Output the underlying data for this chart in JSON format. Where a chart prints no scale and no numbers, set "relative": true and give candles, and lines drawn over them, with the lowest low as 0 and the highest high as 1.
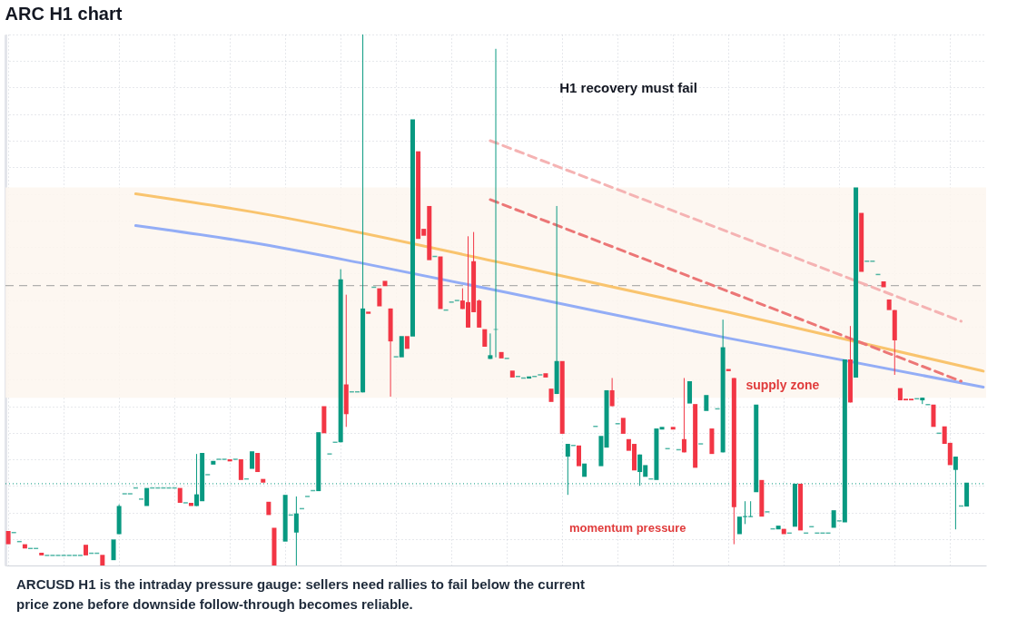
{
  "chart_data": {
    "type": "candlestick",
    "title": "ARC H1 chart",
    "relative": true,
    "grid": true,
    "tick_labels": false,
    "categories": [
      null,
      null,
      null,
      null,
      null,
      null,
      null,
      null,
      null,
      null,
      null,
      null,
      null,
      null,
      null,
      null,
      null,
      null,
      null,
      null,
      null,
      null,
      null,
      null,
      null,
      null,
      null,
      null,
      null,
      null,
      null,
      null,
      null,
      null,
      null,
      null,
      null,
      null,
      null,
      null,
      null,
      null,
      null,
      null,
      null,
      null,
      null,
      null,
      null,
      null,
      null,
      null,
      null,
      null,
      null,
      null,
      null,
      null,
      null,
      null,
      null,
      null,
      null,
      null,
      null,
      null,
      null,
      null,
      null,
      null,
      null,
      null,
      null,
      null,
      null,
      null,
      null,
      null,
      null,
      null,
      null,
      null,
      null,
      null,
      null,
      null,
      null,
      null,
      null,
      null,
      null,
      null,
      null,
      null,
      null,
      null,
      null,
      null,
      null,
      null,
      null,
      null,
      null,
      null,
      null,
      null,
      null,
      null,
      null,
      null,
      null,
      null,
      null,
      null,
      null,
      null,
      null,
      null,
      null,
      null,
      null,
      null,
      null,
      null,
      null,
      null,
      null,
      null,
      null,
      null,
      null,
      null,
      null,
      null,
      null,
      null,
      null,
      null,
      null,
      null,
      null,
      null,
      null,
      null,
      null,
      null,
      null,
      null,
      null,
      null,
      null,
      null,
      null,
      null,
      null,
      null,
      null,
      null,
      null,
      null,
      null,
      null,
      null,
      null,
      null,
      null,
      null,
      null,
      null,
      null,
      null,
      null,
      null,
      null,
      null,
      null,
      null
    ],
    "ohlc": [
      [
        0.065,
        0.065,
        0.04,
        0.04
      ],
      [
        0.062,
        0.062,
        0.062,
        0.062
      ],
      [
        0.045,
        0.045,
        0.045,
        0.045
      ],
      [
        0.04,
        0.04,
        0.032,
        0.032
      ],
      [
        0.032,
        0.032,
        0.032,
        0.032
      ],
      [
        0.032,
        0.032,
        0.032,
        0.032
      ],
      [
        0.024,
        0.024,
        0.019,
        0.019
      ],
      [
        0.019,
        0.019,
        0.019,
        0.019
      ],
      [
        0.019,
        0.019,
        0.019,
        0.019
      ],
      [
        0.019,
        0.019,
        0.019,
        0.019
      ],
      [
        0.019,
        0.019,
        0.019,
        0.019
      ],
      [
        0.019,
        0.019,
        0.019,
        0.019
      ],
      [
        0.019,
        0.019,
        0.019,
        0.019
      ],
      [
        0.019,
        0.019,
        0.019,
        0.019
      ],
      [
        0.039,
        0.039,
        0.019,
        0.019
      ],
      [
        0.023,
        0.023,
        0.023,
        0.023
      ],
      [
        0.023,
        0.023,
        0.023,
        0.023
      ],
      [
        0.02,
        0.02,
        0,
        0
      ],
      null,
      [
        0.01,
        0.049,
        0.01,
        0.049
      ],
      [
        0.059,
        0.115,
        0.059,
        0.112
      ],
      [
        0.135,
        0.135,
        0.135,
        0.135
      ],
      [
        0.135,
        0.135,
        0.135,
        0.135
      ],
      [
        0.146,
        0.146,
        0.146,
        0.146
      ],
      [
        0.125,
        0.125,
        0.125,
        0.125
      ],
      [
        0.112,
        0.146,
        0.112,
        0.146
      ],
      [
        0.146,
        0.146,
        0.146,
        0.146
      ],
      [
        0.146,
        0.146,
        0.146,
        0.146
      ],
      [
        0.146,
        0.146,
        0.146,
        0.146
      ],
      [
        0.146,
        0.146,
        0.146,
        0.146
      ],
      [
        0.146,
        0.146,
        0.146,
        0.146
      ],
      [
        0.146,
        0.146,
        0.118,
        0.118
      ],
      [
        0.118,
        0.118,
        0.118,
        0.118
      ],
      [
        0.118,
        0.118,
        0.112,
        0.112
      ],
      [
        0.112,
        0.21,
        0.112,
        0.134
      ],
      [
        0.121,
        0.212,
        0.121,
        0.212
      ],
      [
        0.171,
        0.171,
        0.171,
        0.171
      ],
      [
        0.19,
        0.197,
        0.19,
        0.197
      ],
      [
        0.2,
        0.2,
        0.2,
        0.2
      ],
      [
        0.2,
        0.2,
        0.2,
        0.2
      ],
      [
        0.2,
        0.2,
        0.196,
        0.196
      ],
      [
        0.2,
        0.2,
        0.2,
        0.2
      ],
      [
        0.2,
        0.2,
        0.161,
        0.161
      ],
      [
        0.163,
        0.163,
        0.163,
        0.163
      ],
      [
        0.182,
        0.215,
        0.182,
        0.215
      ],
      [
        0.212,
        0.212,
        0.176,
        0.176
      ],
      [
        0.163,
        0.163,
        0.156,
        0.156
      ],
      [
        0.12,
        0.12,
        0.095,
        0.095
      ],
      [
        0.071,
        0.071,
        0,
        0
      ],
      null,
      [
        0.045,
        0.133,
        0.045,
        0.133
      ],
      [
        0.095,
        0.095,
        0.095,
        0.095
      ],
      [
        0.062,
        0.13,
        0,
        0.098
      ],
      [
        0.107,
        0.107,
        0.107,
        0.107
      ],
      [
        0.13,
        0.13,
        0.13,
        0.13
      ],
      [
        0.141,
        0.141,
        0.141,
        0.141
      ],
      [
        0.14,
        0.251,
        0.14,
        0.251
      ],
      [
        0.3,
        0.3,
        0.249,
        0.249
      ],
      [
        0.21,
        0.21,
        0.21,
        0.21
      ],
      [
        0.232,
        0.232,
        0.232,
        0.232
      ],
      [
        0.232,
        0.558,
        0.232,
        0.539
      ],
      [
        0.341,
        0.51,
        0.261,
        0.285
      ],
      [
        0.327,
        0.327,
        0.327,
        0.327
      ],
      [
        0.327,
        0.327,
        0.327,
        0.327
      ],
      [
        0.326,
        1,
        0.326,
        0.484
      ],
      [
        0.478,
        0.478,
        0.474,
        0.474
      ],
      [
        0.524,
        0.524,
        0.524,
        0.524
      ],
      [
        0.522,
        0.522,
        0.488,
        0.488
      ],
      [
        0.536,
        0.536,
        0.526,
        0.526
      ],
      [
        0.484,
        0.484,
        0.318,
        0.422
      ],
      [
        0.393,
        0.393,
        0.393,
        0.393
      ],
      [
        0.392,
        0.432,
        0.392,
        0.432
      ],
      [
        0.432,
        0.432,
        0.408,
        0.408
      ],
      [
        0.431,
        0.84,
        0.431,
        0.84
      ],
      [
        0.78,
        0.78,
        0.615,
        0.615
      ],
      [
        0.634,
        0.634,
        0.621,
        0.621
      ],
      [
        0.677,
        0.677,
        0.575,
        0.575
      ],
      [
        0.582,
        0.582,
        0.582,
        0.582
      ],
      [
        0.582,
        0.582,
        0.483,
        0.483
      ],
      [
        0.481,
        0.481,
        0.481,
        0.481
      ],
      [
        0.496,
        0.496,
        0.496,
        0.496
      ],
      [
        0.499,
        0.499,
        0.499,
        0.499
      ],
      [
        0.499,
        0.522,
        0.483,
        0.483
      ],
      [
        0.496,
        0.62,
        0.448,
        0.448
      ],
      [
        0.573,
        0.628,
        0.477,
        0.477
      ],
      [
        0.499,
        0.501,
        0.448,
        0.448
      ],
      [
        0.445,
        0.445,
        0.412,
        0.412
      ],
      [
        0.389,
        0.437,
        0.389,
        0.396
      ],
      [
        0.444,
        0.973,
        0.392,
        0.445
      ],
      [
        0.402,
        0.402,
        0.39,
        0.39
      ],
      [
        0.39,
        0.39,
        0.39,
        0.39
      ],
      [
        0.367,
        0.367,
        0.354,
        0.354
      ],
      [
        0.356,
        0.356,
        0.356,
        0.356
      ],
      [
        0.353,
        0.353,
        0.353,
        0.353
      ],
      [
        0.352,
        0.356,
        0.352,
        0.356
      ],
      [
        0.356,
        0.356,
        0.356,
        0.356
      ],
      [
        0.359,
        0.359,
        0.359,
        0.359
      ],
      [
        0.362,
        0.362,
        0.354,
        0.354
      ],
      [
        0.333,
        0.333,
        0.308,
        0.308
      ],
      [
        0.323,
        0.677,
        0.323,
        0.385
      ],
      [
        0.385,
        0.385,
        0.248,
        0.248
      ],
      [
        0.205,
        0.229,
        0.133,
        0.229
      ],
      [
        0.226,
        0.226,
        0.226,
        0.226
      ],
      [
        0.226,
        0.226,
        0.187,
        0.187
      ],
      [
        0.167,
        0.192,
        0.167,
        0.192
      ],
      null,
      [
        0.262,
        0.262,
        0.262,
        0.262
      ],
      [
        0.187,
        0.244,
        0.187,
        0.244
      ],
      [
        0.222,
        0.33,
        0.222,
        0.33
      ],
      [
        0.33,
        0.353,
        0.3,
        0.3
      ],
      [
        0.267,
        0.267,
        0.267,
        0.267
      ],
      [
        0.278,
        0.278,
        0.248,
        0.248
      ],
      [
        0.238,
        0.238,
        0.216,
        0.216
      ],
      [
        0.229,
        0.229,
        0.179,
        0.179
      ],
      [
        0.176,
        0.209,
        0.15,
        0.209
      ],
      [
        0.167,
        0.189,
        0.167,
        0.189
      ],
      [
        0.163,
        0.163,
        0.163,
        0.163
      ],
      [
        0.161,
        0.258,
        0.161,
        0.258
      ],
      [
        0.256,
        0.261,
        0.256,
        0.261
      ],
      [
        0.22,
        0.22,
        0.22,
        0.22
      ],
      [
        0.261,
        0.261,
        0.256,
        0.256
      ],
      [
        0.218,
        0.218,
        0.218,
        0.218
      ],
      [
        0.238,
        0.353,
        0.213,
        0.213
      ],
      [
        0.305,
        0.347,
        0.305,
        0.347
      ],
      [
        0.304,
        0.304,
        0.184,
        0.184
      ],
      [
        0.229,
        0.229,
        0.229,
        0.229
      ],
      [
        0.291,
        0.321,
        0.291,
        0.321
      ],
      [
        0.258,
        0.258,
        0.21,
        0.21
      ],
      [
        0.295,
        0.295,
        0.295,
        0.295
      ],
      [
        0.213,
        0.463,
        0.213,
        0.411
      ],
      [
        0.37,
        0.37,
        0.366,
        0.366
      ],
      [
        0.353,
        0.353,
        0.04,
        0.11
      ],
      [
        0.059,
        0.092,
        0.059,
        0.092
      ],
      [
        0.092,
        0.121,
        0.078,
        0.092
      ],
      [
        0.092,
        0.121,
        0.092,
        0.092
      ],
      [
        0.138,
        0.303,
        0.138,
        0.303
      ],
      [
        0.161,
        0.161,
        0.092,
        0.092
      ],
      [
        0.101,
        0.101,
        0.101,
        0.101
      ],
      [
        0.069,
        0.069,
        0.069,
        0.069
      ],
      [
        0.068,
        0.075,
        0.068,
        0.075
      ],
      [
        0.069,
        0.069,
        0.059,
        0.059
      ],
      [
        0.061,
        0.061,
        0.061,
        0.061
      ],
      [
        0.073,
        0.154,
        0.073,
        0.154
      ],
      [
        0.154,
        0.154,
        0.066,
        0.066
      ],
      [
        0.061,
        0.061,
        0.061,
        0.061
      ],
      [
        0.073,
        0.073,
        0.073,
        0.073
      ],
      [
        0.061,
        0.061,
        0.061,
        0.061
      ],
      [
        0.061,
        0.061,
        0.061,
        0.061
      ],
      [
        0.061,
        0.061,
        0.061,
        0.061
      ],
      [
        0.071,
        0.104,
        0.071,
        0.104
      ],
      [
        0.084,
        0.084,
        0.084,
        0.084
      ],
      [
        0.081,
        0.388,
        0.081,
        0.388
      ],
      [
        0.388,
        0.451,
        0.307,
        0.307
      ],
      [
        0.354,
        0.712,
        0.354,
        0.712
      ],
      [
        0.664,
        0.664,
        0.553,
        0.553
      ],
      [
        0.573,
        0.573,
        0.573,
        0.573
      ],
      [
        0.573,
        0.573,
        0.573,
        0.573
      ],
      [
        0.548,
        0.548,
        0.548,
        0.548
      ],
      [
        0.535,
        0.535,
        0.524,
        0.524
      ],
      [
        0.501,
        0.501,
        0.481,
        0.481
      ],
      [
        0.481,
        0.481,
        0.359,
        0.424
      ],
      [
        0.334,
        0.334,
        0.311,
        0.311
      ],
      [
        0.314,
        0.314,
        0.311,
        0.311
      ],
      [
        0.314,
        0.314,
        0.311,
        0.311
      ],
      [
        0.314,
        0.314,
        0.314,
        0.314
      ],
      [
        0.311,
        0.316,
        0.304,
        0.316
      ],
      [
        0.303,
        0.303,
        0.303,
        0.303
      ],
      [
        0.303,
        0.303,
        0.261,
        0.261
      ],
      [
        0.249,
        0.249,
        0.249,
        0.249
      ],
      [
        0.262,
        0.262,
        0.229,
        0.229
      ],
      [
        0.231,
        0.231,
        0.189,
        0.189
      ],
      [
        0.18,
        0.205,
        0.068,
        0.205
      ],
      [
        0.112,
        0.112,
        0.112,
        0.112
      ],
      [
        0.111,
        0.156,
        0.111,
        0.156
      ],
      null,
      null,
      null
    ],
    "colors": [
      "#f23645",
      "#089981",
      "#089981",
      "#f23645",
      "#089981",
      "#089981",
      "#f23645",
      "#089981",
      "#089981",
      "#089981",
      "#089981",
      "#089981",
      "#089981",
      "#089981",
      "#f23645",
      "#089981",
      "#089981",
      "#f23645",
      null,
      "#089981",
      "#089981",
      "#089981",
      "#089981",
      "#089981",
      "#089981",
      "#089981",
      "#089981",
      "#089981",
      "#089981",
      "#089981",
      "#089981",
      "#f23645",
      "#089981",
      "#f23645",
      "#089981",
      "#089981",
      "#089981",
      "#089981",
      "#089981",
      "#089981",
      "#f23645",
      "#089981",
      "#f23645",
      "#089981",
      "#089981",
      "#f23645",
      "#f23645",
      "#f23645",
      "#f23645",
      null,
      "#089981",
      "#089981",
      "#089981",
      "#089981",
      "#089981",
      "#089981",
      "#089981",
      "#f23645",
      "#089981",
      "#089981",
      "#089981",
      "#f23645",
      "#089981",
      "#089981",
      "#089981",
      "#f23645",
      "#089981",
      "#f23645",
      "#f23645",
      "#f23645",
      "#089981",
      "#089981",
      "#f23645",
      "#089981",
      "#f23645",
      "#f23645",
      "#f23645",
      "#089981",
      "#f23645",
      "#089981",
      "#089981",
      "#089981",
      "#f23645",
      "#f23645",
      "#f23645",
      "#f23645",
      "#f23645",
      "#089981",
      "#089981",
      "#f23645",
      "#089981",
      "#f23645",
      "#089981",
      "#089981",
      "#089981",
      "#089981",
      "#089981",
      "#f23645",
      "#f23645",
      "#089981",
      "#f23645",
      "#089981",
      "#089981",
      "#f23645",
      "#089981",
      null,
      "#089981",
      "#089981",
      "#089981",
      "#f23645",
      "#089981",
      "#f23645",
      "#f23645",
      "#f23645",
      "#089981",
      "#089981",
      "#089981",
      "#089981",
      "#089981",
      "#089981",
      "#f23645",
      "#089981",
      "#f23645",
      "#089981",
      "#f23645",
      "#089981",
      "#089981",
      "#f23645",
      "#089981",
      "#089981",
      "#f23645",
      "#f23645",
      "#089981",
      "#089981",
      "#089981",
      "#089981",
      "#f23645",
      "#089981",
      "#089981",
      "#089981",
      "#f23645",
      "#089981",
      "#089981",
      "#f23645",
      "#089981",
      "#089981",
      "#089981",
      "#089981",
      "#089981",
      "#089981",
      "#089981",
      "#089981",
      "#f23645",
      "#089981",
      "#f23645",
      "#089981",
      "#089981",
      "#089981",
      "#f23645",
      "#f23645",
      "#f23645",
      "#f23645",
      "#f23645",
      "#f23645",
      "#089981",
      "#089981",
      "#089981",
      "#f23645",
      "#089981",
      "#f23645",
      "#f23645",
      "#089981",
      "#089981",
      "#089981",
      null,
      null,
      null
    ],
    "series": [
      {
        "type": "line",
        "color": "#f9c46e",
        "line_style": "solid",
        "values": [
          null,
          null,
          null,
          null,
          null,
          null,
          null,
          null,
          null,
          null,
          null,
          null,
          null,
          null,
          null,
          null,
          null,
          null,
          null,
          null,
          null,
          null,
          null,
          0.7,
          null,
          null,
          null,
          null,
          null,
          null,
          null,
          null,
          null,
          null,
          null,
          null,
          null,
          null,
          null,
          null,
          null,
          null,
          null,
          null,
          0.666,
          null,
          null,
          null,
          null,
          null,
          null,
          null,
          null,
          null,
          null,
          null,
          null,
          null,
          null,
          null,
          null,
          null,
          null,
          null,
          null,
          null,
          null,
          null,
          null,
          null,
          null,
          null,
          null,
          null,
          null,
          null,
          null,
          null,
          null,
          null,
          null,
          null,
          null,
          null,
          null,
          null,
          null,
          null,
          null,
          null,
          0.568,
          null,
          null,
          null,
          null,
          null,
          null,
          null,
          null,
          null,
          null,
          null,
          null,
          null,
          null,
          null,
          null,
          null,
          null,
          null,
          null,
          null,
          null,
          null,
          null,
          null,
          null,
          null,
          null,
          null,
          null,
          null,
          null,
          null,
          null,
          null,
          null,
          null,
          null,
          null,
          0.477,
          null,
          null,
          null,
          null,
          null,
          null,
          null,
          null,
          null,
          null,
          null,
          null,
          null,
          null,
          null,
          null,
          null,
          null,
          null,
          null,
          null,
          null,
          null,
          null,
          null,
          null,
          null,
          null,
          null,
          null,
          null,
          null,
          null,
          null,
          null,
          null,
          null,
          null,
          null,
          null,
          null,
          null,
          null,
          null,
          null,
          0.366
        ]
      },
      {
        "type": "line",
        "color": "#93adf6",
        "line_style": "solid",
        "values": [
          null,
          null,
          null,
          null,
          null,
          null,
          null,
          null,
          null,
          null,
          null,
          null,
          null,
          null,
          null,
          null,
          null,
          null,
          null,
          null,
          null,
          null,
          null,
          0.64,
          null,
          null,
          null,
          null,
          null,
          null,
          null,
          null,
          null,
          null,
          null,
          null,
          null,
          null,
          null,
          null,
          null,
          null,
          null,
          null,
          0.608,
          null,
          null,
          null,
          null,
          null,
          null,
          null,
          null,
          null,
          null,
          null,
          null,
          null,
          null,
          null,
          null,
          null,
          null,
          null,
          0.569,
          null,
          null,
          null,
          null,
          null,
          null,
          null,
          null,
          null,
          null,
          null,
          null,
          null,
          null,
          null,
          null,
          null,
          null,
          null,
          null,
          null,
          null,
          null,
          null,
          null,
          0.514,
          null,
          null,
          null,
          null,
          null,
          null,
          null,
          null,
          null,
          null,
          null,
          null,
          null,
          null,
          null,
          null,
          null,
          null,
          null,
          null,
          null,
          null,
          null,
          null,
          null,
          null,
          null,
          null,
          null,
          null,
          null,
          null,
          null,
          null,
          null,
          null,
          null,
          null,
          null,
          0.428,
          null,
          null,
          null,
          null,
          null,
          null,
          null,
          null,
          null,
          null,
          null,
          null,
          null,
          null,
          null,
          null,
          null,
          null,
          null,
          null,
          null,
          null,
          null,
          null,
          null,
          null,
          null,
          null,
          null,
          null,
          null,
          null,
          null,
          null,
          null,
          null,
          null,
          null,
          null,
          null,
          null,
          null,
          null,
          null,
          null,
          0.336
        ]
      },
      {
        "type": "line",
        "color": "#f5b3b3",
        "line_style": "dashed",
        "values": [
          null,
          null,
          null,
          null,
          null,
          null,
          null,
          null,
          null,
          null,
          null,
          null,
          null,
          null,
          null,
          null,
          null,
          null,
          null,
          null,
          null,
          null,
          null,
          null,
          null,
          null,
          null,
          null,
          null,
          null,
          null,
          null,
          null,
          null,
          null,
          null,
          null,
          null,
          null,
          null,
          null,
          null,
          null,
          null,
          null,
          null,
          null,
          null,
          null,
          null,
          null,
          null,
          null,
          null,
          null,
          null,
          null,
          null,
          null,
          null,
          null,
          null,
          null,
          null,
          null,
          null,
          null,
          null,
          null,
          null,
          null,
          null,
          null,
          null,
          null,
          null,
          null,
          null,
          null,
          null,
          null,
          null,
          null,
          null,
          null,
          null,
          null,
          0.8,
          null,
          null,
          null,
          null,
          null,
          null,
          null,
          null,
          null,
          null,
          null,
          null,
          null,
          null,
          null,
          null,
          null,
          null,
          null,
          null,
          null,
          null,
          null,
          null,
          null,
          null,
          null,
          null,
          null,
          null,
          null,
          null,
          null,
          null,
          null,
          null,
          null,
          null,
          null,
          null,
          null,
          null,
          null,
          null,
          null,
          null,
          null,
          null,
          null,
          null,
          null,
          null,
          null,
          null,
          null,
          null,
          null,
          null,
          null,
          null,
          null,
          null,
          null,
          null,
          null,
          null,
          null,
          null,
          null,
          null,
          null,
          null,
          null,
          null,
          null,
          null,
          null,
          null,
          null,
          null,
          null,
          null,
          null,
          null,
          0.46,
          null,
          null,
          null,
          null
        ]
      },
      {
        "type": "line",
        "color": "#ec7676",
        "line_style": "dashed",
        "values": [
          null,
          null,
          null,
          null,
          null,
          null,
          null,
          null,
          null,
          null,
          null,
          null,
          null,
          null,
          null,
          null,
          null,
          null,
          null,
          null,
          null,
          null,
          null,
          null,
          null,
          null,
          null,
          null,
          null,
          null,
          null,
          null,
          null,
          null,
          null,
          null,
          null,
          null,
          null,
          null,
          null,
          null,
          null,
          null,
          null,
          null,
          null,
          null,
          null,
          null,
          null,
          null,
          null,
          null,
          null,
          null,
          null,
          null,
          null,
          null,
          null,
          null,
          null,
          null,
          null,
          null,
          null,
          null,
          null,
          null,
          null,
          null,
          null,
          null,
          null,
          null,
          null,
          null,
          null,
          null,
          null,
          null,
          null,
          null,
          null,
          null,
          null,
          0.689,
          null,
          null,
          null,
          null,
          null,
          null,
          null,
          null,
          null,
          null,
          null,
          null,
          null,
          null,
          null,
          null,
          null,
          null,
          null,
          null,
          null,
          null,
          null,
          null,
          null,
          null,
          null,
          null,
          null,
          null,
          null,
          null,
          null,
          null,
          null,
          null,
          null,
          null,
          null,
          null,
          null,
          null,
          null,
          null,
          null,
          null,
          null,
          null,
          null,
          null,
          null,
          null,
          null,
          null,
          null,
          null,
          null,
          null,
          null,
          null,
          null,
          null,
          null,
          null,
          null,
          null,
          null,
          null,
          null,
          null,
          null,
          null,
          null,
          null,
          null,
          null,
          null,
          null,
          null,
          null,
          null,
          null,
          null,
          null,
          0.347,
          null,
          null,
          null,
          null
        ]
      }
    ],
    "bands": [
      {
        "axis": "y",
        "from": 0.316,
        "to": 0.712,
        "label": "supply zone",
        "color": "#fdf6ee"
      }
    ],
    "ref_lines": [
      {
        "axis": "y",
        "value": 0.527,
        "color": "#9e9e9e",
        "line_style": "dashed"
      },
      {
        "axis": "y",
        "value": 0.154,
        "color": "#089981",
        "line_style": "dotted"
      }
    ],
    "annotations": [
      "H1 recovery must fail",
      "momentum pressure",
      "ARCUSD H1 is the intraday pressure gauge: sellers need rallies to fail below the current price zone before downside follow-through becomes reliable."
    ]
  }
}
